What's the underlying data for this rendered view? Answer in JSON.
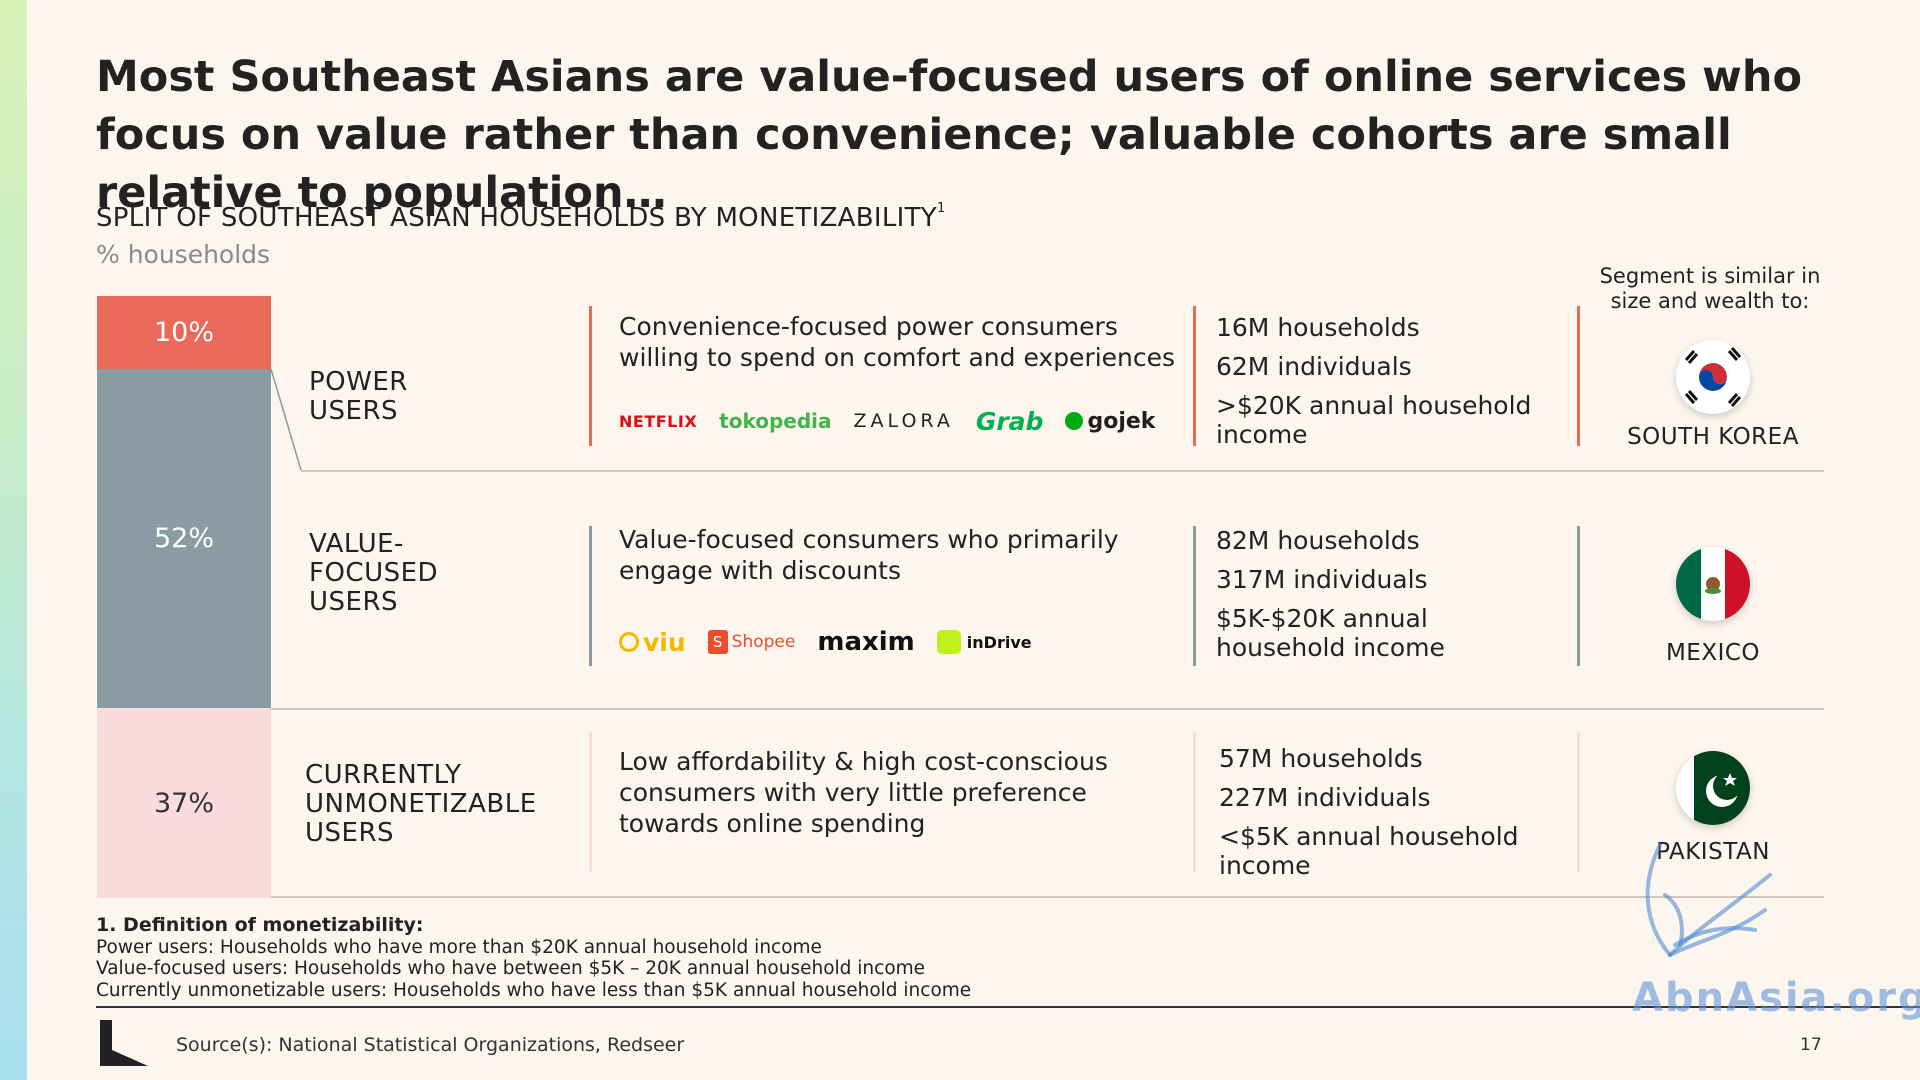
{
  "title": "Most Southeast Asians are value-focused users of online services who focus on value rather than convenience; valuable cohorts are small relative to population…",
  "subtitle": "SPLIT OF SOUTHEAST ASIAN HOUSEHOLDS BY MONETIZABILITY",
  "subtitle_footnote_mark": "1",
  "unit_label": "% households",
  "similar_header": "Segment is similar in size and wealth to:",
  "segments": [
    {
      "share": "10%",
      "share_value": 10,
      "color": "#ea6a59",
      "label_lines": [
        "POWER",
        "USERS"
      ],
      "description": "Convenience-focused power consumers willing to spend on comfort and experiences",
      "logos": [
        "NETFLIX",
        "tokopedia",
        "ZALORA",
        "Grab",
        "gojek"
      ],
      "stats": [
        "16M households",
        "62M individuals",
        ">$20K annual household income"
      ],
      "country": "SOUTH KOREA",
      "flag_icon": "south-korea-flag-icon"
    },
    {
      "share": "52%",
      "share_value": 52,
      "color": "#8b9ba3",
      "label_lines": [
        "VALUE-",
        "FOCUSED",
        "USERS"
      ],
      "description": "Value-focused consumers who primarily engage with discounts",
      "logos": [
        "viu",
        "Shopee",
        "maxim",
        "inDrive"
      ],
      "stats": [
        "82M households",
        "317M individuals",
        "$5K-$20K annual household income"
      ],
      "country": "MEXICO",
      "flag_icon": "mexico-flag-icon"
    },
    {
      "share": "37%",
      "share_value": 37,
      "color": "#fbdcde",
      "label_lines": [
        "CURRENTLY",
        "UNMONETIZABLE",
        "USERS"
      ],
      "description": "Low affordability & high cost-conscious consumers  with very little preference towards online spending",
      "logos": [],
      "stats": [
        "57M households",
        "227M individuals",
        "<$5K annual household income"
      ],
      "country": "PAKISTAN",
      "flag_icon": "pakistan-flag-icon"
    }
  ],
  "footnote": {
    "heading": "1. Definition of monetizability:",
    "lines": [
      "Power users: Households who have more than $20K annual household income",
      "Value-focused users: Households who have between $5K – 20K annual household income",
      "Currently unmonetizable users: Households who have less than $5K annual household income"
    ]
  },
  "source": "Source(s): National Statistical Organizations, Redseer",
  "page_number": "17",
  "watermark": "AbnAsia.org",
  "colors": {
    "background": "#fcf6ee",
    "power_line": "#ea6a59",
    "value_line": "#8b9ba3",
    "unmon_line": "#fbdcde"
  }
}
